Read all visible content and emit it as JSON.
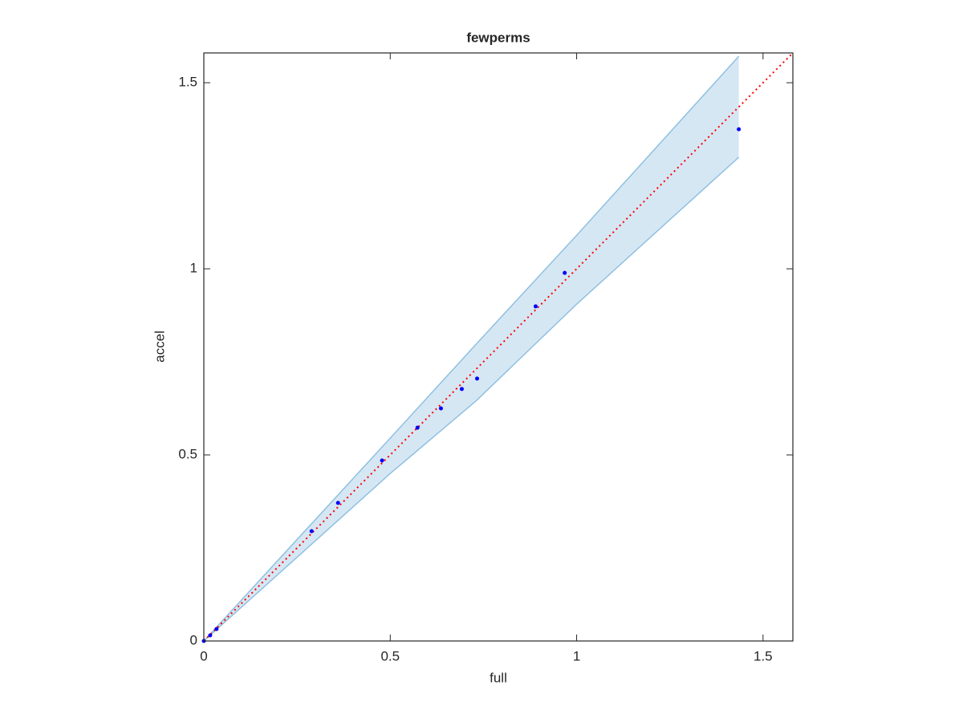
{
  "chart_data": {
    "type": "scatter",
    "title": "fewperms",
    "x_label": "full",
    "y_label": "accel",
    "x": [
      0,
      0.017,
      0.034,
      0.289,
      0.36,
      0.478,
      0.573,
      0.636,
      0.692,
      0.733,
      0.89,
      0.968,
      1.435
    ],
    "values": [
      0,
      0.015,
      0.032,
      0.295,
      0.371,
      0.485,
      0.573,
      0.625,
      0.677,
      0.705,
      0.899,
      0.989,
      1.375
    ],
    "color": "#0000ff",
    "band": {
      "x": [
        0,
        0.5,
        0.73,
        1.0,
        1.435
      ],
      "upper": [
        0,
        0.545,
        0.797,
        1.09,
        1.571
      ],
      "lower": [
        0,
        0.45,
        0.645,
        0.905,
        1.3
      ],
      "color": "#8fc0e0",
      "fill": "#d6e7f4"
    },
    "reference_line": {
      "x": [
        0,
        1.58
      ],
      "y": [
        0,
        1.58
      ],
      "color": "#ff0000"
    },
    "xlim": [
      0,
      1.58
    ],
    "ylim": [
      0,
      1.58
    ],
    "xticks": [
      0,
      0.5,
      1,
      1.5
    ],
    "yticks": [
      0,
      0.5,
      1,
      1.5
    ]
  }
}
